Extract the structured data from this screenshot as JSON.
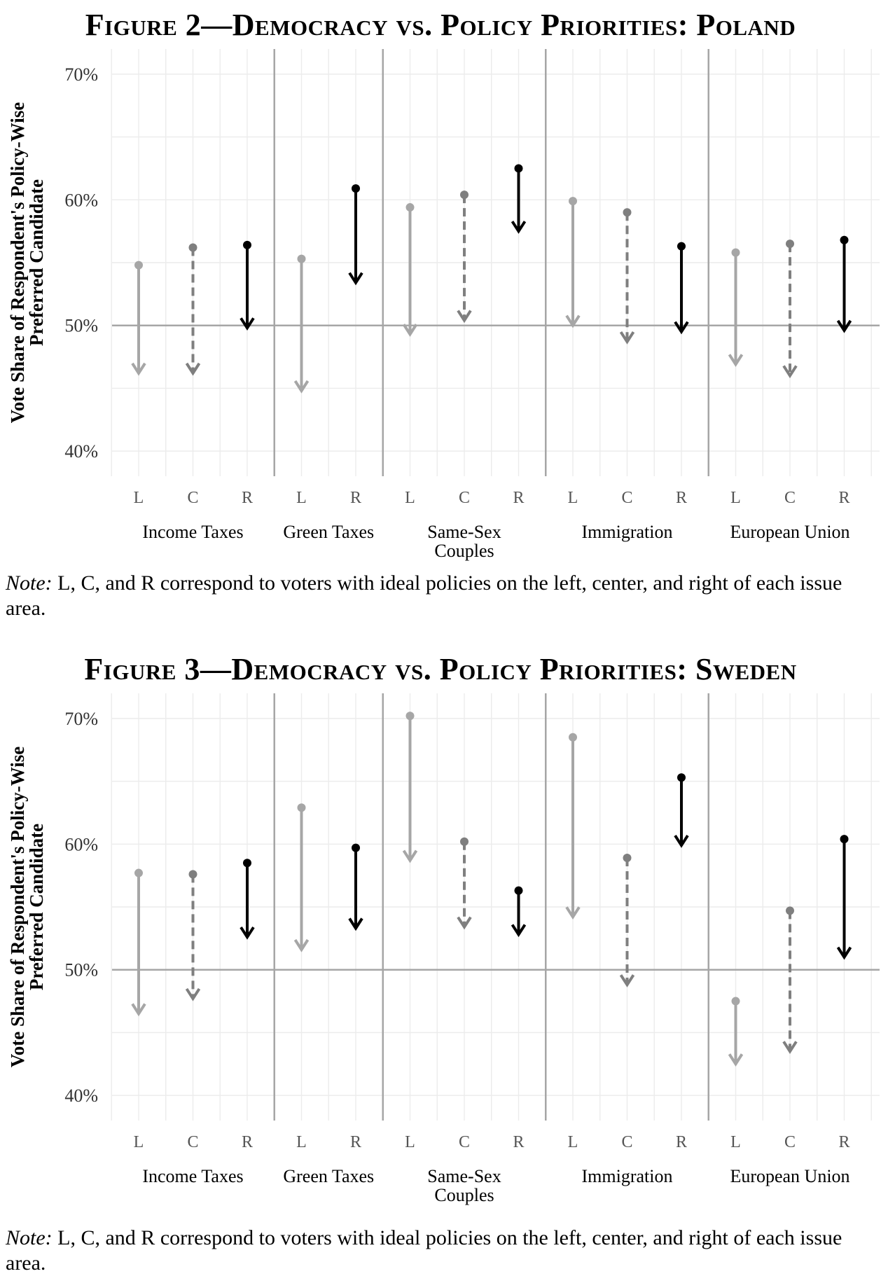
{
  "chart_data": [
    {
      "type": "arrow-range",
      "title": "Figure 2—Democracy vs. Policy Priorities: Poland",
      "ylabel": [
        "Vote Share of Respondent's Policy-Wise",
        "Preferred Candidate"
      ],
      "ylim": [
        38,
        72
      ],
      "yticks": [
        "40%",
        "50%",
        "60%",
        "70%"
      ],
      "ytick_values": [
        40,
        50,
        60,
        70
      ],
      "reference_line": 50,
      "grid": true,
      "groups": [
        {
          "name": "Income Taxes",
          "positions": [
            "L",
            "C",
            "R"
          ]
        },
        {
          "name": "Green Taxes",
          "positions": [
            "L",
            "R"
          ]
        },
        {
          "name": "Same-Sex Couples",
          "positions": [
            "L",
            "C",
            "R"
          ]
        },
        {
          "name": "Immigration",
          "positions": [
            "L",
            "C",
            "R"
          ]
        },
        {
          "name": "European Union",
          "positions": [
            "L",
            "C",
            "R"
          ]
        }
      ],
      "arrows": [
        {
          "group": "Income Taxes",
          "position": "L",
          "start": 54.8,
          "end": 46.2
        },
        {
          "group": "Income Taxes",
          "position": "C",
          "start": 56.2,
          "end": 46.2
        },
        {
          "group": "Income Taxes",
          "position": "R",
          "start": 56.4,
          "end": 49.8
        },
        {
          "group": "Green Taxes",
          "position": "L",
          "start": 55.3,
          "end": 44.8
        },
        {
          "group": "Green Taxes",
          "position": "R",
          "start": 60.9,
          "end": 53.4
        },
        {
          "group": "Same-Sex Couples",
          "position": "L",
          "start": 59.4,
          "end": 49.3
        },
        {
          "group": "Same-Sex Couples",
          "position": "C",
          "start": 60.4,
          "end": 50.4
        },
        {
          "group": "Same-Sex Couples",
          "position": "R",
          "start": 62.5,
          "end": 57.5
        },
        {
          "group": "Immigration",
          "position": "L",
          "start": 59.9,
          "end": 50.0
        },
        {
          "group": "Immigration",
          "position": "C",
          "start": 59.0,
          "end": 48.7
        },
        {
          "group": "Immigration",
          "position": "R",
          "start": 56.3,
          "end": 49.5
        },
        {
          "group": "European Union",
          "position": "L",
          "start": 55.8,
          "end": 46.9
        },
        {
          "group": "European Union",
          "position": "C",
          "start": 56.5,
          "end": 46.0
        },
        {
          "group": "European Union",
          "position": "R",
          "start": 56.8,
          "end": 49.6
        }
      ],
      "styles": {
        "L": {
          "color": "#a6a6a6",
          "dash": false
        },
        "C": {
          "color": "#7f7f7f",
          "dash": true
        },
        "R": {
          "color": "#000000",
          "dash": false
        }
      },
      "note_label": "Note:",
      "note_text": "L, C, and R correspond to voters with ideal policies on the left, center, and right of each issue area."
    },
    {
      "type": "arrow-range",
      "title": "Figure 3—Democracy vs. Policy Priorities: Sweden",
      "ylabel": [
        "Vote Share of Respondent's Policy-Wise",
        "Preferred Candidate"
      ],
      "ylim": [
        38,
        72
      ],
      "yticks": [
        "40%",
        "50%",
        "60%",
        "70%"
      ],
      "ytick_values": [
        40,
        50,
        60,
        70
      ],
      "reference_line": 50,
      "grid": true,
      "groups": [
        {
          "name": "Income Taxes",
          "positions": [
            "L",
            "C",
            "R"
          ]
        },
        {
          "name": "Green Taxes",
          "positions": [
            "L",
            "R"
          ]
        },
        {
          "name": "Same-Sex Couples",
          "positions": [
            "L",
            "C",
            "R"
          ]
        },
        {
          "name": "Immigration",
          "positions": [
            "L",
            "C",
            "R"
          ]
        },
        {
          "name": "European Union",
          "positions": [
            "L",
            "C",
            "R"
          ]
        }
      ],
      "arrows": [
        {
          "group": "Income Taxes",
          "position": "L",
          "start": 57.7,
          "end": 46.5
        },
        {
          "group": "Income Taxes",
          "position": "C",
          "start": 57.6,
          "end": 47.7
        },
        {
          "group": "Income Taxes",
          "position": "R",
          "start": 58.5,
          "end": 52.6
        },
        {
          "group": "Green Taxes",
          "position": "L",
          "start": 62.9,
          "end": 51.6
        },
        {
          "group": "Green Taxes",
          "position": "R",
          "start": 59.7,
          "end": 53.3
        },
        {
          "group": "Same-Sex Couples",
          "position": "L",
          "start": 70.2,
          "end": 58.7
        },
        {
          "group": "Same-Sex Couples",
          "position": "C",
          "start": 60.2,
          "end": 53.4
        },
        {
          "group": "Same-Sex Couples",
          "position": "R",
          "start": 56.3,
          "end": 52.8
        },
        {
          "group": "Immigration",
          "position": "L",
          "start": 68.5,
          "end": 54.2
        },
        {
          "group": "Immigration",
          "position": "C",
          "start": 58.9,
          "end": 48.8
        },
        {
          "group": "Immigration",
          "position": "R",
          "start": 65.3,
          "end": 59.9
        },
        {
          "group": "European Union",
          "position": "L",
          "start": 47.5,
          "end": 42.5
        },
        {
          "group": "European Union",
          "position": "C",
          "start": 54.7,
          "end": 43.5
        },
        {
          "group": "European Union",
          "position": "R",
          "start": 60.4,
          "end": 51.0
        }
      ],
      "styles": {
        "L": {
          "color": "#a6a6a6",
          "dash": false
        },
        "C": {
          "color": "#7f7f7f",
          "dash": true
        },
        "R": {
          "color": "#000000",
          "dash": false
        }
      },
      "note_label": "Note:",
      "note_text": "L, C, and R correspond to voters with ideal policies on the left, center, and right of each issue area."
    }
  ]
}
